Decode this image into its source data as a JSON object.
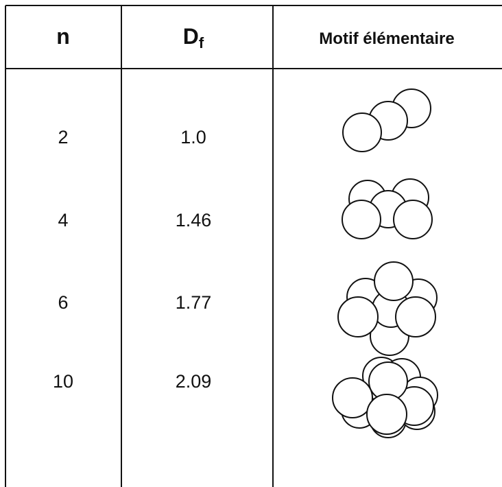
{
  "table": {
    "header": [
      "n",
      {
        "text": "D",
        "sub": "f"
      },
      "Motif élémentaire"
    ],
    "rows": [
      [
        "2",
        "1.0"
      ],
      [
        "4",
        "1.46"
      ],
      [
        "6",
        "1.77"
      ],
      [
        "10",
        "2.09"
      ]
    ]
  }
}
